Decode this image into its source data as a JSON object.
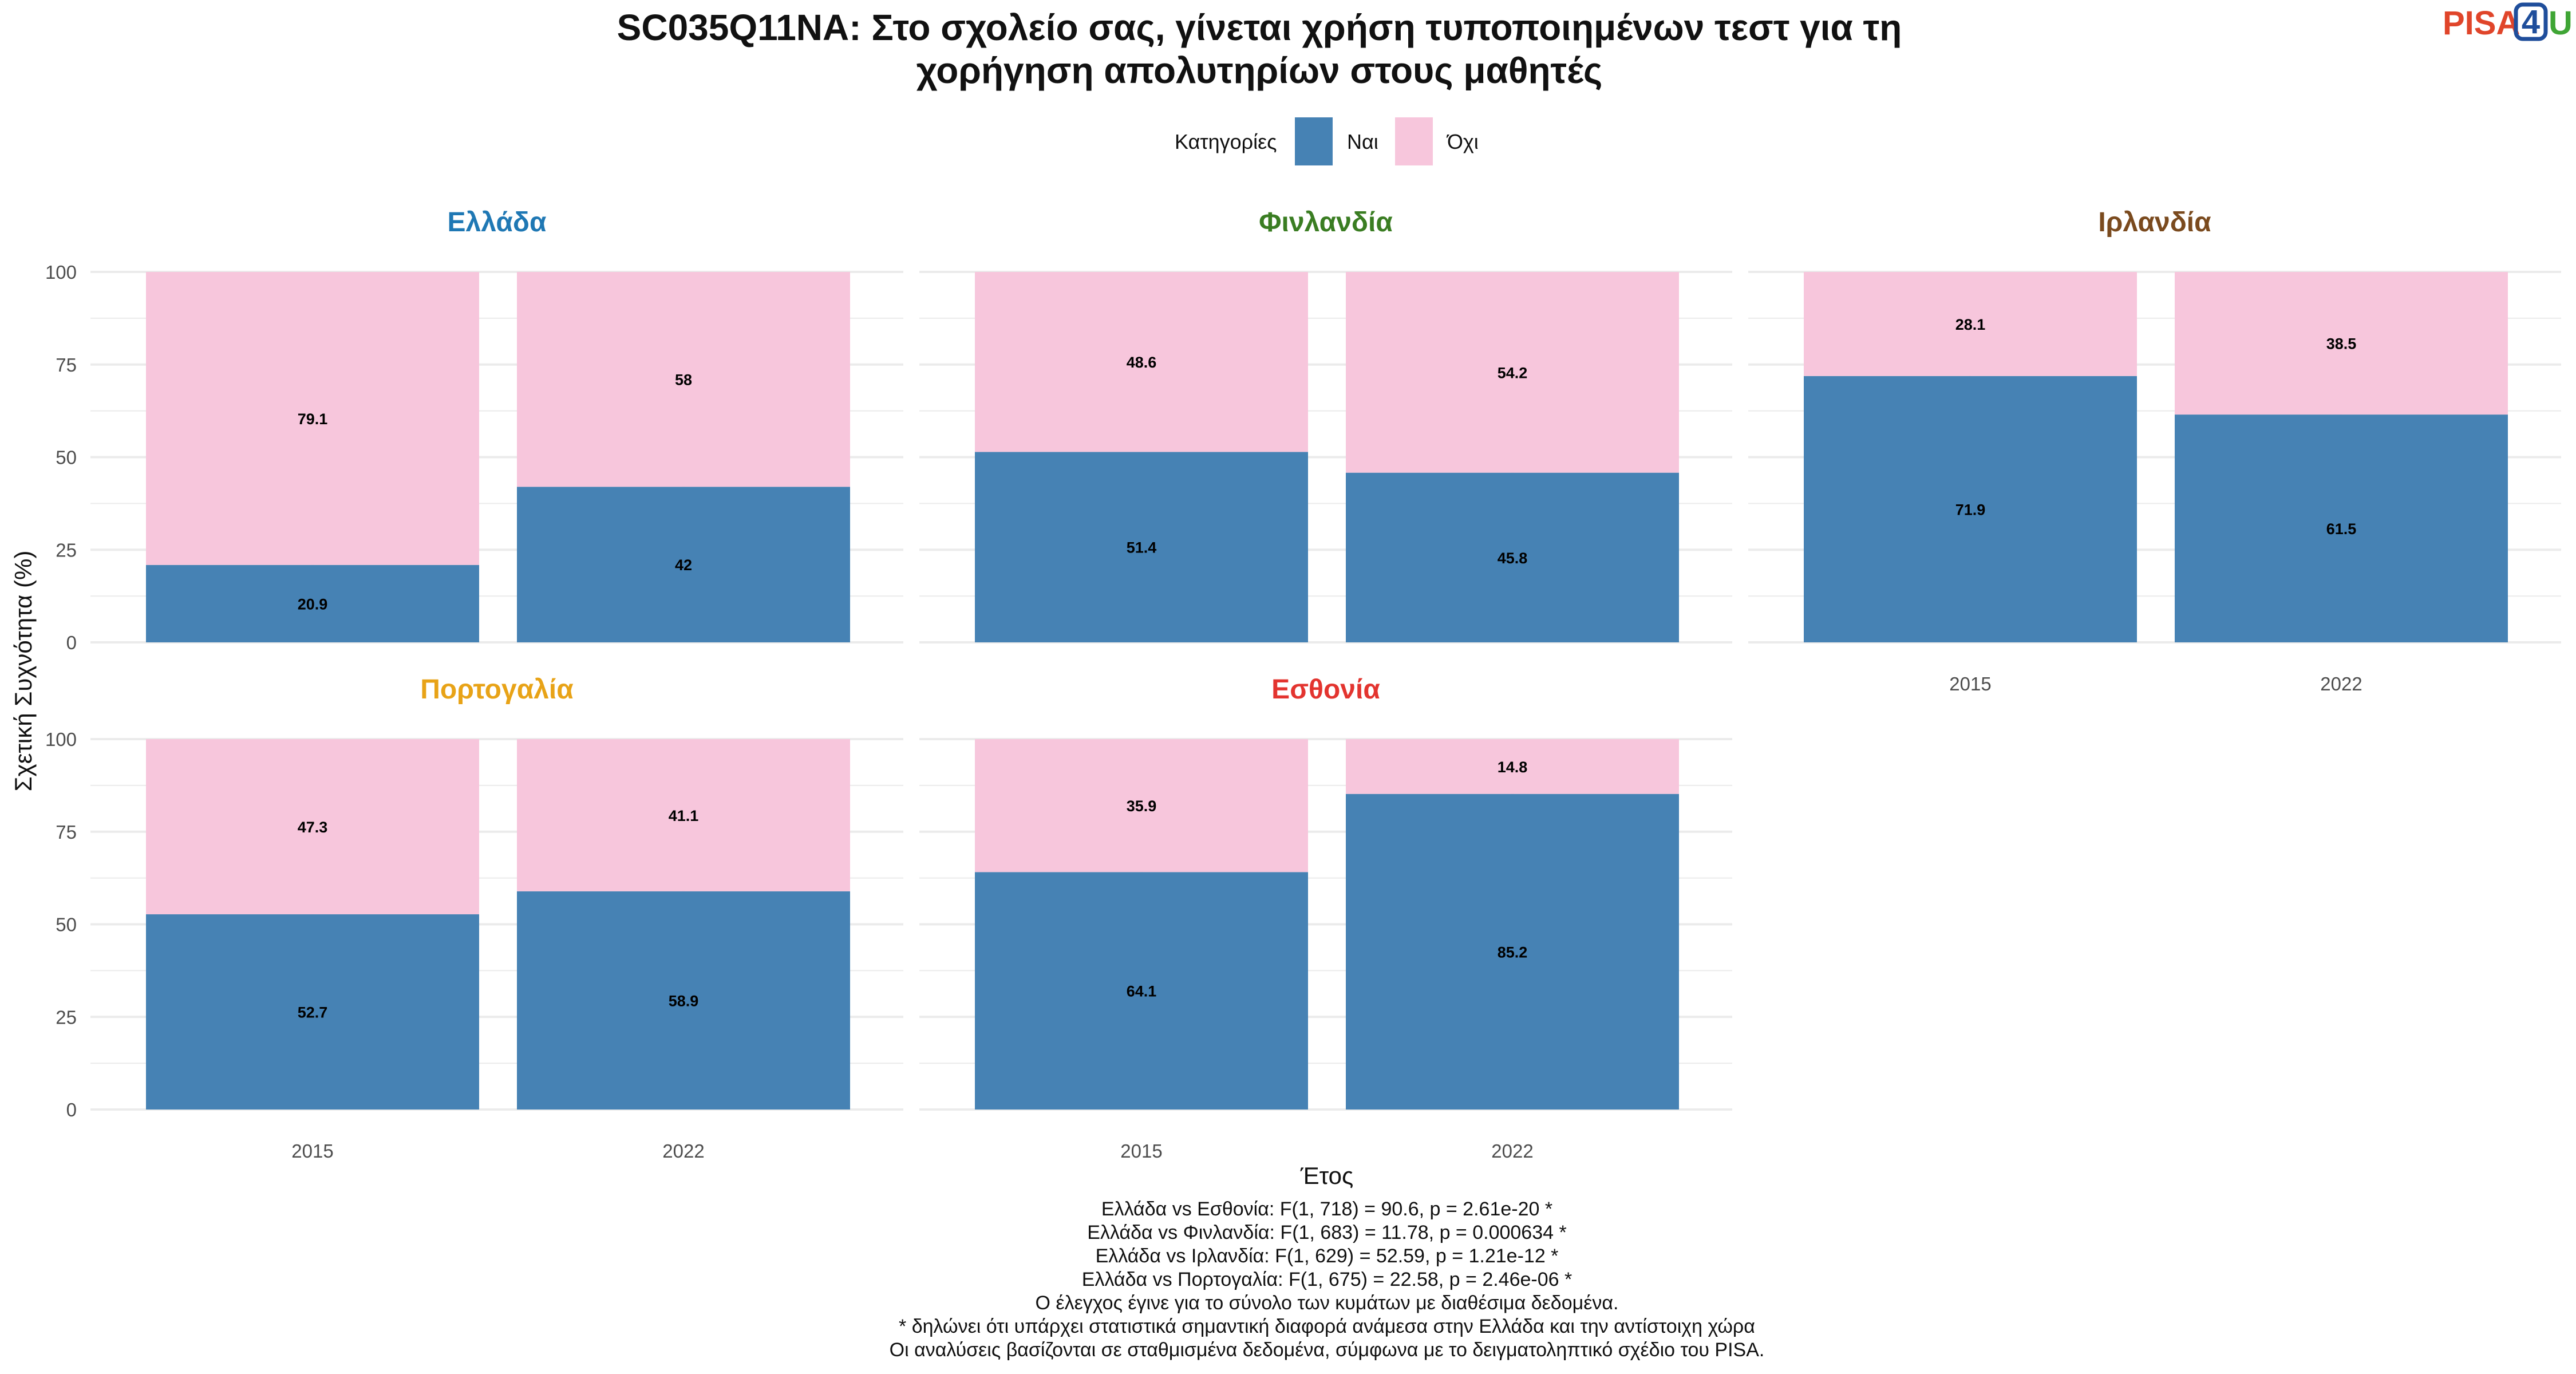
{
  "title_line1": "SC035Q11NA: Στο σχολείο σας, γίνεται χρήση τυποποιημένων τεστ για τη",
  "title_line2": "χορήγηση απολυτηρίων στους μαθητές",
  "logo": {
    "pisa": "PISA",
    "num": "4",
    "u": "U"
  },
  "legend": {
    "title": "Κατηγορίες",
    "items": [
      "Ναι",
      "Όχι"
    ]
  },
  "colors": {
    "yes": "#4682b4",
    "no": "#f7c6dc",
    "grid": "#ebebeb",
    "logo_pisa": "#e0452a",
    "logo_num": "#1f4e9b",
    "logo_u": "#3fa535"
  },
  "chart_data": {
    "type": "bar",
    "stacked": true,
    "x": [
      "2015",
      "2022"
    ],
    "xlabel": "Έτος",
    "ylabel": "Σχετική Συχνότητα (%)",
    "ylim": [
      0,
      100
    ],
    "yticks": [
      0,
      25,
      50,
      75,
      100
    ],
    "grid": true,
    "legend_position": "top",
    "panels": [
      {
        "title": "Ελλάδα",
        "color": "#1f78b4",
        "yes": [
          20.9,
          42
        ],
        "no": [
          79.1,
          58
        ]
      },
      {
        "title": "Φινλανδία",
        "color": "#3a7d22",
        "yes": [
          51.4,
          45.8
        ],
        "no": [
          48.6,
          54.2
        ]
      },
      {
        "title": "Ιρλανδία",
        "color": "#7a4a1e",
        "yes": [
          71.9,
          61.5
        ],
        "no": [
          28.1,
          38.5
        ]
      },
      {
        "title": "Πορτογαλία",
        "color": "#e8a317",
        "yes": [
          52.7,
          58.9
        ],
        "no": [
          47.3,
          41.1
        ]
      },
      {
        "title": "Εσθονία",
        "color": "#e3342f",
        "yes": [
          64.1,
          85.2
        ],
        "no": [
          35.9,
          14.8
        ]
      }
    ]
  },
  "notes": [
    "Ελλάδα vs Εσθονία: F(1, 718) = 90.6, p = 2.61e-20 *",
    "Ελλάδα vs Φινλανδία: F(1, 683) = 11.78, p = 0.000634 *",
    "Ελλάδα vs Ιρλανδία: F(1, 629) = 52.59, p = 1.21e-12 *",
    "Ελλάδα vs Πορτογαλία: F(1, 675) = 22.58, p = 2.46e-06 *",
    "Ο έλεγχος έγινε για το σύνολο των κυμάτων με διαθέσιμα δεδομένα.",
    "* δηλώνει ότι υπάρχει στατιστικά σημαντική διαφορά ανάμεσα στην Ελλάδα και την αντίστοιχη χώρα",
    "Οι αναλύσεις βασίζονται σε σταθμισμένα δεδομένα, σύμφωνα με το δειγματοληπτικό σχέδιο του PISA."
  ]
}
